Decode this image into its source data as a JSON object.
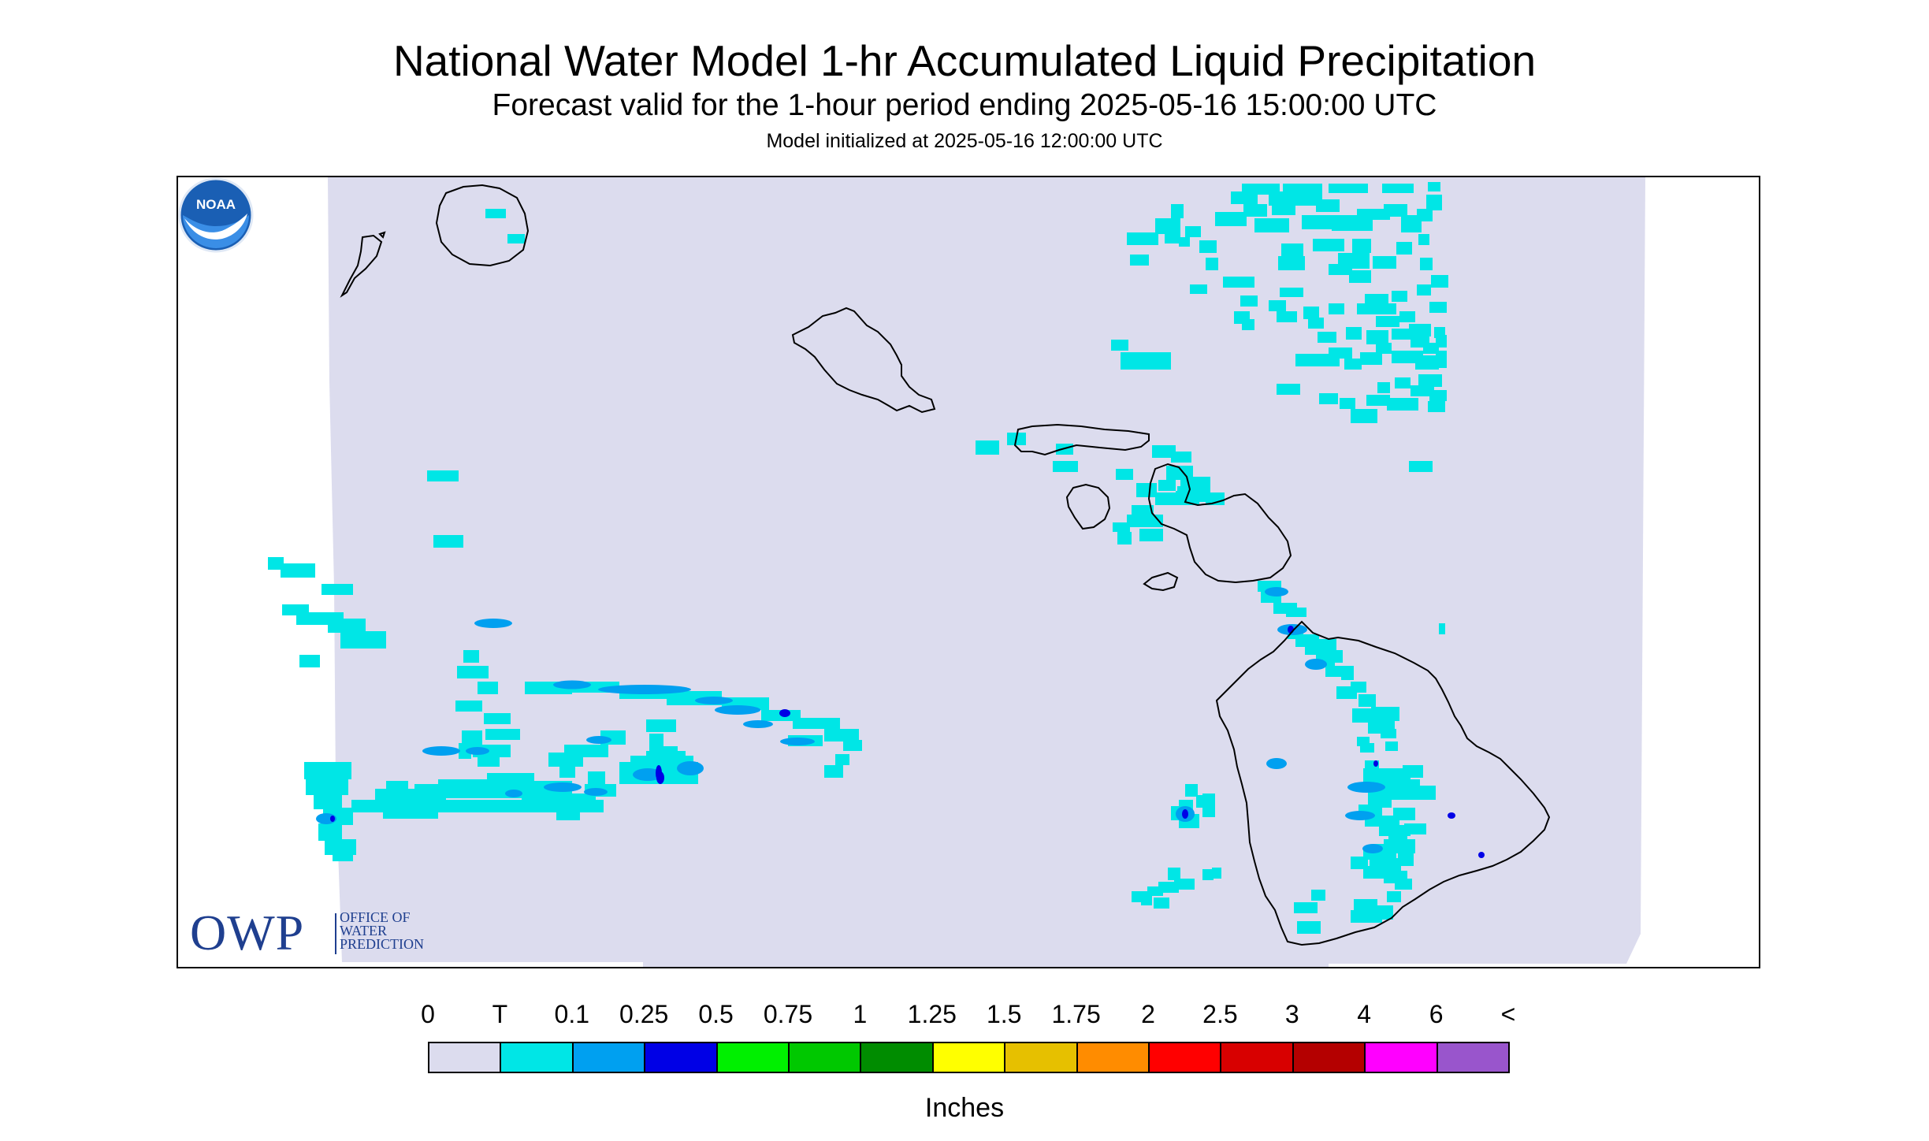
{
  "header": {
    "title": "National Water Model 1-hr Accumulated Liquid Precipitation",
    "subtitle": "Forecast valid for the 1-hour period ending 2025-05-16 15:00:00 UTC",
    "init": "Model initialized at 2025-05-16 12:00:00 UTC"
  },
  "map": {
    "region": "Hawaii",
    "background_color": "#dcdcee",
    "trace_color": "#00e6e6",
    "light_blue_color": "#00a0f0",
    "blue_color": "#0000e6",
    "coastline_color": "#000000"
  },
  "logos": {
    "owp": {
      "letters": "OWP",
      "line1": "OFFICE OF",
      "line2": "WATER",
      "line3": "PREDICTION",
      "color": "#1f3f8f"
    },
    "noaa": {
      "text": "NOAA"
    }
  },
  "legend": {
    "labels": [
      "0",
      "T",
      "0.1",
      "0.25",
      "0.5",
      "0.75",
      "1",
      "1.25",
      "1.5",
      "1.75",
      "2",
      "2.5",
      "3",
      "4",
      "6",
      "<"
    ],
    "colors": [
      "#dcdcee",
      "#00e6e6",
      "#00a0f0",
      "#0000e6",
      "#00f000",
      "#00c800",
      "#008c00",
      "#ffff00",
      "#e6c000",
      "#ff8c00",
      "#ff0000",
      "#d80000",
      "#b40000",
      "#ff00ff",
      "#9955cc"
    ],
    "units": "Inches"
  }
}
